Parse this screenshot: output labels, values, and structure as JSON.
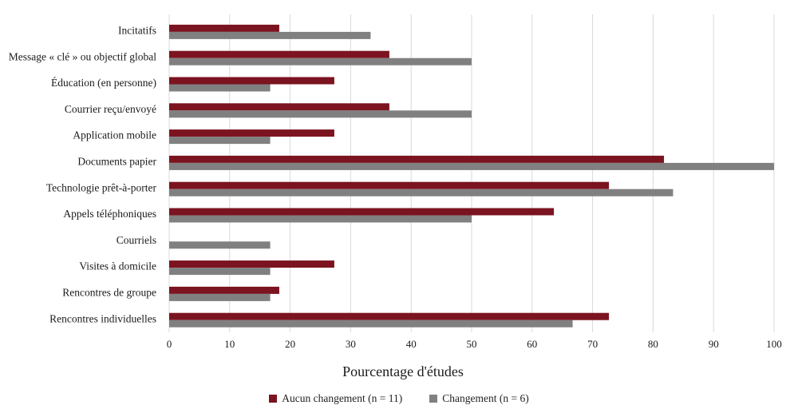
{
  "chart_data": {
    "type": "bar",
    "orientation": "horizontal",
    "categories": [
      "Incitatifs",
      "Message « clé » ou objectif global",
      "Éducation (en personne)",
      "Courrier reçu/envoyé",
      "Application mobile",
      "Documents papier",
      "Technologie prêt-à-porter",
      "Appels téléphoniques",
      "Courriels",
      "Visites à domicile",
      "Rencontres de groupe",
      "Rencontres individuelles"
    ],
    "series": [
      {
        "name": "Aucun changement (n = 11)",
        "color": "#7b1420",
        "values": [
          18.2,
          36.4,
          27.3,
          36.4,
          27.3,
          81.8,
          72.7,
          63.6,
          0,
          27.3,
          18.2,
          72.7
        ]
      },
      {
        "name": "Changement (n = 6)",
        "color": "#808080",
        "values": [
          33.3,
          50,
          16.7,
          50,
          16.7,
          100,
          83.3,
          50,
          16.7,
          16.7,
          16.7,
          66.7
        ]
      }
    ],
    "xlim": [
      0,
      100
    ],
    "xticks": [
      0,
      10,
      20,
      30,
      40,
      50,
      60,
      70,
      80,
      90,
      100
    ],
    "xlabel": "Pourcentage d'études",
    "grid": "vertical",
    "legend": "bottom-center"
  }
}
